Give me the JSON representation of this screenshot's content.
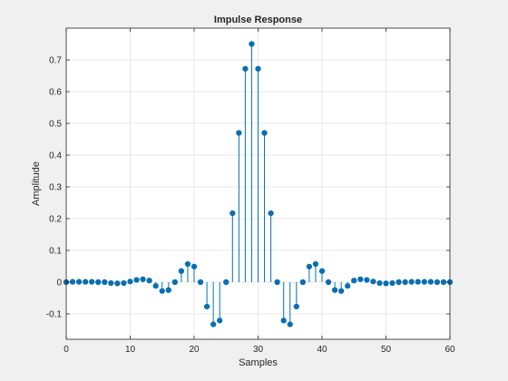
{
  "chart_data": {
    "type": "stem",
    "title": "Impulse Response",
    "xlabel": "Samples",
    "ylabel": "Amplitude",
    "xlim": [
      0,
      60
    ],
    "ylim": [
      -0.18,
      0.8
    ],
    "xticks": [
      0,
      10,
      20,
      30,
      40,
      50,
      60
    ],
    "yticks": [
      -0.1,
      0,
      0.1,
      0.2,
      0.3,
      0.4,
      0.5,
      0.6,
      0.7
    ],
    "ytick_labels": [
      "-0.1",
      "0",
      "0.1",
      "0.2",
      "0.3",
      "0.4",
      "0.5",
      "0.6",
      "0.7"
    ],
    "grid": true,
    "colors": {
      "stem": "#0072bd",
      "marker": "#0072bd",
      "background": "#f0f0f0",
      "plot_area": "#ffffff",
      "grid": "#dfdfdf",
      "axes": "#262626"
    },
    "series": [
      {
        "x": [
          0,
          1,
          2,
          3,
          4,
          5,
          6,
          7,
          8,
          9,
          10,
          11,
          12,
          13,
          14,
          15,
          16,
          17,
          18,
          19,
          20,
          21,
          22,
          23,
          24,
          25,
          26,
          27,
          28,
          29,
          30,
          31,
          32,
          33,
          34,
          35,
          36,
          37,
          38,
          39,
          40,
          41,
          42,
          43,
          44,
          45,
          46,
          47,
          48,
          49,
          50,
          51,
          52,
          53,
          54,
          55,
          56,
          57,
          58,
          59,
          60
        ],
        "values": [
          0.0,
          0.001,
          0.001,
          0.001,
          0.001,
          0.0,
          0.0,
          -0.003,
          -0.004,
          -0.003,
          0.002,
          0.007,
          0.009,
          0.005,
          -0.012,
          -0.028,
          -0.025,
          0.0,
          0.035,
          0.057,
          0.049,
          0.0,
          -0.077,
          -0.133,
          -0.121,
          0.0,
          0.217,
          0.47,
          0.672,
          0.75,
          0.672,
          0.47,
          0.217,
          0.0,
          -0.121,
          -0.133,
          -0.077,
          0.0,
          0.049,
          0.057,
          0.035,
          0.0,
          -0.025,
          -0.028,
          -0.012,
          0.005,
          0.009,
          0.007,
          0.002,
          -0.003,
          -0.004,
          -0.003,
          0.0,
          0.0,
          0.001,
          0.001,
          0.001,
          0.001,
          0.0,
          0.0,
          0.0
        ]
      }
    ]
  }
}
